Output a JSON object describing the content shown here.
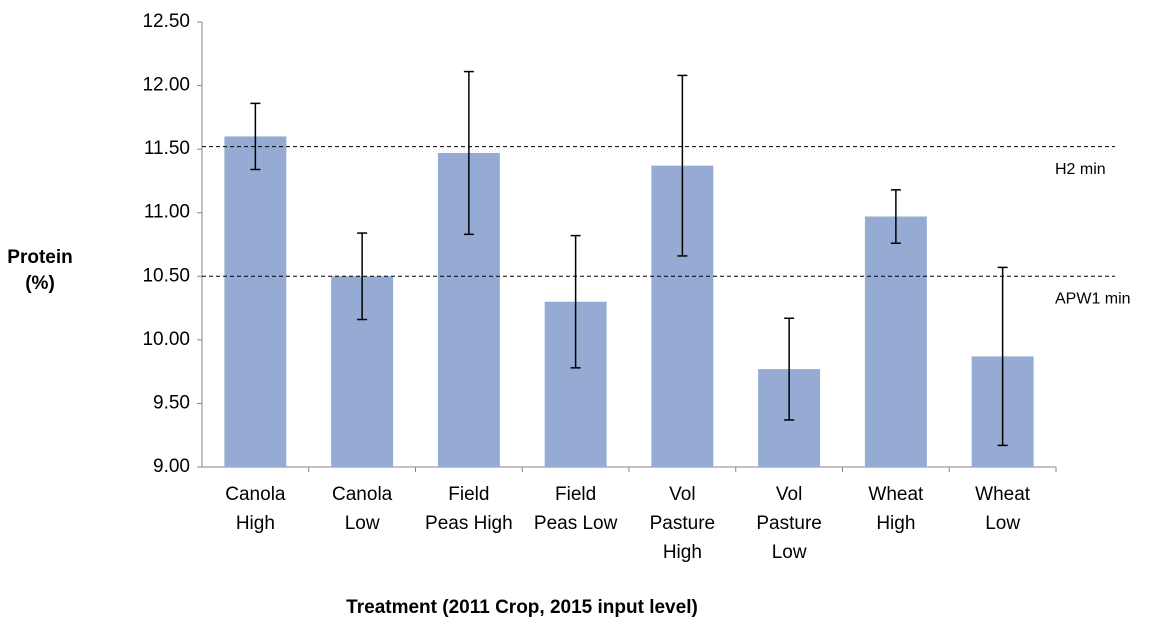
{
  "chart_data": {
    "type": "bar",
    "x_label": "Treatment (2011 Crop, 2015 input level)",
    "y_label": [
      "Protein",
      "(%)"
    ],
    "categories": [
      [
        "Canola",
        "High"
      ],
      [
        "Canola",
        "Low"
      ],
      [
        "Field",
        "Peas High"
      ],
      [
        "Field",
        "Peas Low"
      ],
      [
        "Vol",
        "Pasture",
        "High"
      ],
      [
        "Vol",
        "Pasture",
        "Low"
      ],
      [
        "Wheat",
        "High"
      ],
      [
        "Wheat",
        "Low"
      ]
    ],
    "values": [
      11.6,
      10.5,
      11.47,
      10.3,
      11.37,
      9.77,
      10.97,
      9.87
    ],
    "errors": [
      0.26,
      0.34,
      0.64,
      0.52,
      0.71,
      0.4,
      0.21,
      0.7
    ],
    "color": "#95abd3",
    "ylim": [
      9,
      12.5
    ],
    "yticks": [
      {
        "value": 9,
        "label": "9.00"
      },
      {
        "value": 9.5,
        "label": "9.50"
      },
      {
        "value": 10,
        "label": "10.00"
      },
      {
        "value": 10.5,
        "label": "10.50"
      },
      {
        "value": 11,
        "label": "11.00"
      },
      {
        "value": 11.5,
        "label": "11.50"
      },
      {
        "value": 12,
        "label": "12.00"
      },
      {
        "value": 12.5,
        "label": "12.50"
      }
    ],
    "reference_lines": [
      {
        "value": 11.52,
        "label": "H2 min"
      },
      {
        "value": 10.5,
        "label": "APW1 min"
      }
    ]
  }
}
